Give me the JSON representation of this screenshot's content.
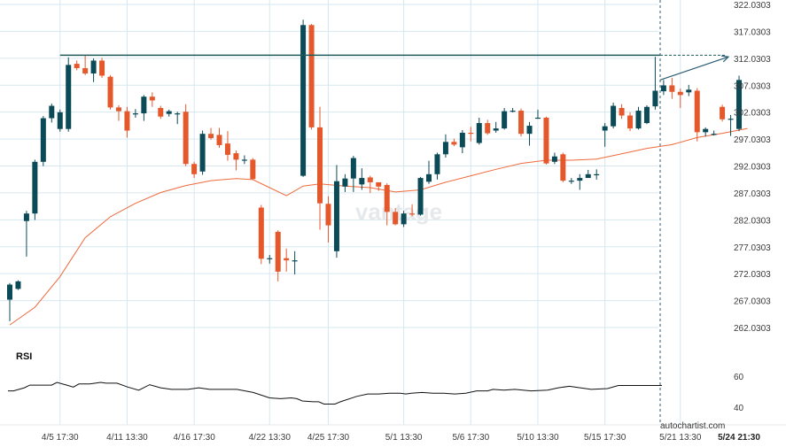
{
  "colors": {
    "up": "#0b4a57",
    "down": "#e4582c",
    "ma": "#ee6a3c",
    "level": "#1d5a5a",
    "rsi": "#111111",
    "grid": "#d6e7ef",
    "axis_text": "#3a3a3a",
    "watermark": "#dfe3e6"
  },
  "watermark": "vantage",
  "brand": "autochartist.com",
  "chart_data": [
    {
      "type": "candlestick",
      "title": "",
      "ylim": [
        262.0303,
        322.0303
      ],
      "y_ticks": [
        "322.0303",
        "317.0303",
        "312.0303",
        "307.0303",
        "302.0303",
        "297.0303",
        "292.0303",
        "287.0303",
        "282.0303",
        "277.0303",
        "272.0303",
        "267.0303",
        "262.0303"
      ],
      "x_ticks": [
        "4/5 17:30",
        "4/11 13:30",
        "4/16 17:30",
        "4/22 13:30",
        "4/25 17:30",
        "5/1 13:30",
        "5/6 17:30",
        "5/10 13:30",
        "5/15 17:30",
        "5/21 13:30",
        "5/24 21:30"
      ],
      "x_tick_index": [
        6,
        14,
        22,
        31,
        38,
        47,
        55,
        63,
        71,
        80,
        87
      ],
      "highlight_tick": "5/24 21:30",
      "resistance_level": 312.6,
      "forecast": {
        "from": 308.0,
        "to": 312.3
      },
      "candles": [
        [
          267.2,
          270.0,
          263.2,
          270.3
        ],
        [
          269.2,
          270.6,
          269.0,
          270.8
        ],
        [
          281.8,
          283.2,
          275.2,
          283.7
        ],
        [
          283.2,
          292.8,
          282.0,
          293.2
        ],
        [
          292.8,
          300.9,
          292.0,
          301.3
        ],
        [
          300.9,
          303.2,
          300.1,
          303.6
        ],
        [
          298.9,
          302.0,
          298.4,
          302.5
        ],
        [
          298.9,
          310.8,
          298.4,
          312.2
        ],
        [
          311.0,
          310.2,
          309.8,
          311.6
        ],
        [
          310.2,
          309.2,
          308.9,
          312.5
        ],
        [
          309.2,
          311.6,
          307.6,
          312.0
        ],
        [
          311.6,
          308.8,
          308.4,
          312.1
        ],
        [
          308.6,
          302.9,
          302.5,
          308.9
        ],
        [
          302.9,
          302.2,
          300.4,
          303.3
        ],
        [
          302.2,
          298.6,
          297.3,
          303.0
        ],
        [
          301.8,
          301.8,
          301.0,
          302.6
        ],
        [
          301.8,
          304.9,
          300.4,
          305.2
        ],
        [
          304.9,
          304.2,
          303.0,
          305.7
        ],
        [
          302.8,
          301.2,
          300.8,
          303.2
        ],
        [
          301.7,
          302.2,
          301.2,
          302.5
        ],
        [
          301.8,
          301.8,
          299.8,
          302.1
        ],
        [
          302.1,
          292.4,
          292.0,
          303.5
        ],
        [
          292.4,
          290.5,
          289.8,
          292.8
        ],
        [
          291.0,
          298.0,
          290.4,
          298.6
        ],
        [
          298.0,
          297.2,
          296.9,
          299.1
        ],
        [
          297.8,
          295.9,
          295.4,
          299.1
        ],
        [
          296.2,
          294.1,
          293.0,
          298.5
        ],
        [
          294.4,
          293.2,
          291.2,
          294.9
        ],
        [
          293.2,
          293.2,
          292.4,
          294.0
        ],
        [
          293.2,
          289.6,
          289.6,
          293.5
        ],
        [
          284.3,
          274.8,
          273.8,
          284.8
        ],
        [
          274.8,
          274.9,
          273.9,
          275.5
        ],
        [
          279.8,
          272.4,
          270.6,
          280.1
        ],
        [
          274.9,
          274.5,
          272.4,
          276.7
        ],
        [
          274.5,
          274.5,
          271.9,
          276.2
        ],
        [
          290.2,
          318.2,
          290.0,
          319.2
        ],
        [
          318.2,
          299.2,
          298.8,
          318.4
        ],
        [
          299.2,
          285.1,
          280.2,
          303.0
        ],
        [
          285.0,
          281.0,
          277.8,
          286.4
        ],
        [
          276.2,
          289.2,
          275.0,
          292.2
        ],
        [
          288.2,
          289.7,
          287.2,
          290.5
        ],
        [
          289.7,
          293.5,
          287.2,
          293.9
        ],
        [
          288.6,
          289.8,
          287.6,
          291.6
        ],
        [
          289.9,
          289.0,
          287.0,
          290.2
        ],
        [
          289.0,
          288.2,
          287.4,
          288.9
        ],
        [
          288.5,
          283.5,
          281.0,
          288.8
        ],
        [
          283.5,
          281.2,
          281.0,
          284.2
        ],
        [
          281.2,
          283.2,
          280.7,
          283.7
        ],
        [
          283.2,
          283.0,
          282.7,
          284.9
        ],
        [
          283.0,
          289.8,
          282.8,
          290.0
        ],
        [
          289.1,
          290.5,
          288.7,
          293.0
        ],
        [
          290.5,
          294.2,
          289.5,
          294.5
        ],
        [
          294.2,
          296.5,
          293.6,
          297.9
        ],
        [
          296.5,
          296.0,
          295.7,
          297.1
        ],
        [
          295.5,
          298.2,
          294.4,
          298.7
        ],
        [
          298.2,
          298.0,
          296.6,
          299.3
        ],
        [
          296.3,
          300.0,
          296.0,
          301.0
        ],
        [
          300.0,
          298.1,
          297.8,
          300.6
        ],
        [
          298.6,
          299.0,
          298.2,
          300.2
        ],
        [
          299.0,
          302.2,
          298.8,
          302.8
        ],
        [
          302.2,
          302.3,
          302.0,
          302.8
        ],
        [
          302.3,
          298.0,
          297.5,
          302.7
        ],
        [
          298.0,
          299.5,
          295.8,
          300.2
        ],
        [
          301.0,
          301.0,
          300.8,
          302.5
        ],
        [
          301.0,
          292.5,
          292.3,
          301.2
        ],
        [
          292.8,
          293.8,
          292.4,
          294.5
        ],
        [
          294.2,
          289.3,
          289.0,
          294.5
        ],
        [
          289.3,
          289.3,
          288.7,
          289.8
        ],
        [
          289.3,
          289.8,
          287.6,
          290.5
        ],
        [
          289.8,
          290.5,
          290.0,
          291.3
        ],
        [
          290.5,
          290.5,
          289.5,
          291.4
        ],
        [
          298.6,
          299.4,
          295.6,
          300.0
        ],
        [
          299.4,
          303.2,
          299.0,
          303.8
        ],
        [
          302.8,
          301.4,
          300.8,
          303.5
        ],
        [
          301.4,
          299.0,
          298.5,
          302.0
        ],
        [
          299.0,
          302.3,
          298.8,
          303.0
        ],
        [
          300.0,
          303.0,
          299.8,
          303.3
        ],
        [
          303.1,
          306.0,
          302.5,
          312.3
        ],
        [
          305.9,
          307.0,
          305.2,
          308.0
        ],
        [
          307.0,
          305.8,
          304.5,
          308.4
        ],
        [
          305.8,
          305.2,
          302.8,
          306.4
        ],
        [
          305.7,
          306.2,
          305.0,
          307.1
        ],
        [
          306.0,
          298.3,
          296.6,
          306.5
        ],
        [
          298.3,
          298.9,
          297.5,
          299.2
        ],
        [
          298.0,
          298.0,
          297.7,
          298.6
        ],
        [
          303.0,
          300.7,
          300.3,
          303.4
        ],
        [
          300.7,
          300.8,
          297.6,
          301.5
        ],
        [
          298.9,
          308.0,
          298.5,
          308.8
        ]
      ],
      "ma": [
        [
          0,
          262.5
        ],
        [
          3,
          265.8
        ],
        [
          6,
          271.5
        ],
        [
          9,
          278.7
        ],
        [
          12,
          282.6
        ],
        [
          15,
          285.1
        ],
        [
          18,
          287.1
        ],
        [
          21,
          288.4
        ],
        [
          24,
          289.3
        ],
        [
          27,
          289.7
        ],
        [
          29,
          289.5
        ],
        [
          31,
          288.0
        ],
        [
          33,
          286.5
        ],
        [
          35,
          288.3
        ],
        [
          37,
          288.7
        ],
        [
          40,
          288.3
        ],
        [
          43,
          288.0
        ],
        [
          46,
          287.2
        ],
        [
          49,
          287.6
        ],
        [
          52,
          289.0
        ],
        [
          55,
          290.2
        ],
        [
          58,
          291.4
        ],
        [
          61,
          292.5
        ],
        [
          64,
          293.1
        ],
        [
          67,
          293.1
        ],
        [
          70,
          293.3
        ],
        [
          73,
          294.3
        ],
        [
          76,
          295.3
        ],
        [
          79,
          296.0
        ],
        [
          82,
          297.3
        ],
        [
          85,
          298.1
        ],
        [
          88,
          299.0
        ]
      ],
      "rsi": {
        "label": "RSI",
        "ylim": [
          30,
          70
        ],
        "ticks": [
          "60",
          "40"
        ],
        "values": [
          [
            0,
            50.5
          ],
          [
            1,
            50.5
          ],
          [
            3,
            52.5
          ],
          [
            4,
            54.2
          ],
          [
            8,
            54.2
          ],
          [
            9,
            56.0
          ],
          [
            11,
            54.0
          ],
          [
            12,
            53.0
          ],
          [
            13,
            55.0
          ],
          [
            15,
            55.0
          ],
          [
            17,
            56.0
          ],
          [
            18,
            55.5
          ],
          [
            20,
            55.5
          ],
          [
            22,
            53.0
          ],
          [
            24,
            51.0
          ],
          [
            26,
            54.5
          ],
          [
            28,
            52.5
          ],
          [
            30,
            51.5
          ],
          [
            33,
            51.5
          ],
          [
            35,
            52.5
          ],
          [
            37,
            51.5
          ],
          [
            42,
            51.5
          ],
          [
            45,
            49.5
          ],
          [
            48,
            46.0
          ],
          [
            50,
            45.5
          ],
          [
            52,
            46.0
          ],
          [
            53,
            45.5
          ],
          [
            54,
            44.0
          ],
          [
            56,
            43.5
          ],
          [
            57,
            43.5
          ],
          [
            58,
            42.0
          ],
          [
            60,
            42.0
          ],
          [
            61,
            43.5
          ],
          [
            64,
            47.0
          ],
          [
            66,
            48.5
          ],
          [
            68,
            48.5
          ],
          [
            70,
            49.0
          ],
          [
            72,
            49.0
          ],
          [
            73,
            48.5
          ],
          [
            74,
            49.0
          ],
          [
            76,
            49.5
          ],
          [
            78,
            49.0
          ],
          [
            80,
            49.0
          ],
          [
            82,
            48.5
          ],
          [
            84,
            49.0
          ],
          [
            86,
            50.5
          ],
          [
            88,
            50.5
          ],
          [
            89,
            51.5
          ],
          [
            91,
            51.0
          ],
          [
            93,
            51.5
          ],
          [
            96,
            50.5
          ],
          [
            99,
            51.0
          ],
          [
            101,
            52.5
          ],
          [
            103,
            53.5
          ],
          [
            105,
            52.5
          ],
          [
            107,
            51.5
          ],
          [
            110,
            52.0
          ],
          [
            112,
            54.0
          ],
          [
            114,
            54.0
          ],
          [
            117,
            54.0
          ],
          [
            120,
            54.0
          ]
        ]
      }
    }
  ]
}
